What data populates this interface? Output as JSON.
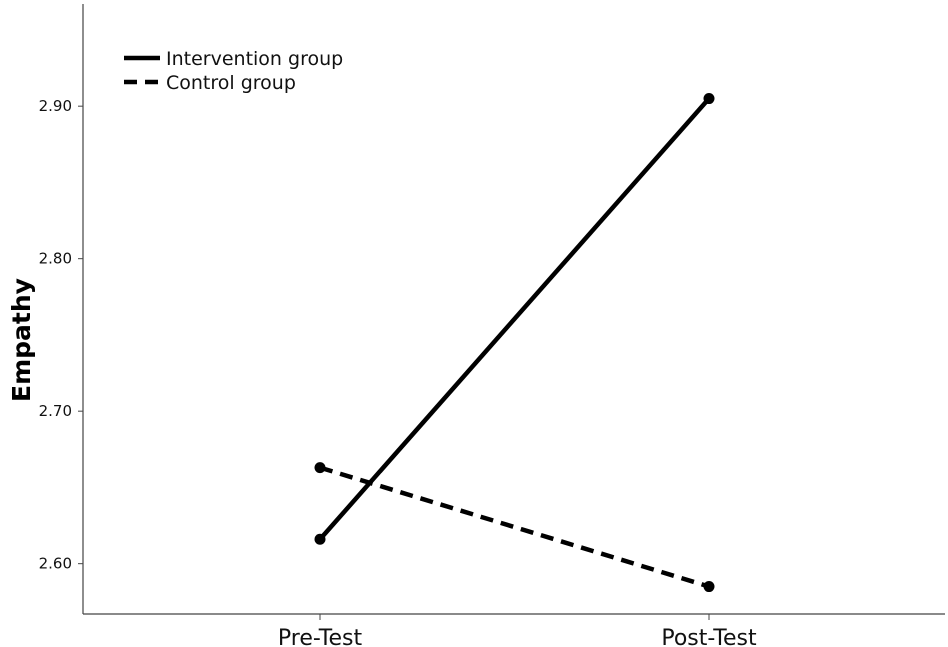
{
  "chart_data": {
    "type": "line",
    "categories": [
      "Pre-Test",
      "Post-Test"
    ],
    "series": [
      {
        "name": "Intervention group",
        "values": [
          2.616,
          2.905
        ],
        "line_style": "solid",
        "color": "#000000"
      },
      {
        "name": "Control group",
        "values": [
          2.663,
          2.585
        ],
        "line_style": "dashed",
        "color": "#000000"
      }
    ],
    "title": "",
    "xlabel": "",
    "ylabel": "Empathy",
    "ylim": [
      2.567,
      2.967
    ],
    "yticks": [
      2.6,
      2.7,
      2.8,
      2.9
    ],
    "ytick_labels": [
      "2.60",
      "2.70",
      "2.80",
      "2.90"
    ],
    "grid": false,
    "legend_position": "top-left"
  }
}
